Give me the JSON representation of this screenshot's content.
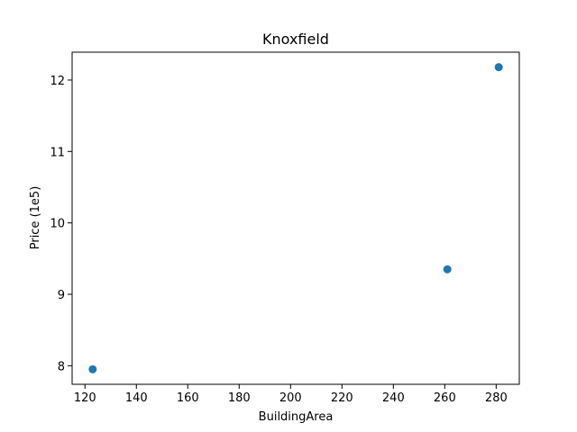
{
  "chart_data": {
    "type": "scatter",
    "title": "Knoxfield",
    "xlabel": "BuildingArea",
    "ylabel": "Price (1e5)",
    "xlim": [
      115,
      289
    ],
    "ylim": [
      7.74,
      12.39
    ],
    "xticks": [
      120,
      140,
      160,
      180,
      200,
      220,
      240,
      260,
      280
    ],
    "yticks": [
      8,
      9,
      10,
      11,
      12
    ],
    "grid": false,
    "marker_color": "#1f77b4",
    "points": [
      {
        "x": 123,
        "y": 7.95
      },
      {
        "x": 261,
        "y": 9.35
      },
      {
        "x": 281,
        "y": 12.18
      }
    ]
  }
}
